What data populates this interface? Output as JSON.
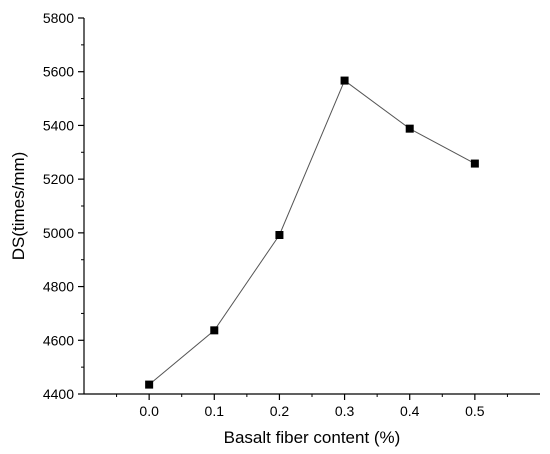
{
  "chart_data": {
    "type": "line",
    "title": "",
    "xlabel": "Basalt fiber content (%)",
    "ylabel": "DS(times/mm)",
    "x": [
      0.0,
      0.1,
      0.2,
      0.3,
      0.4,
      0.5
    ],
    "series": [
      {
        "values": [
          4435,
          4637,
          4992,
          5567,
          5388,
          5258
        ]
      }
    ],
    "xlim": [
      -0.1,
      0.6
    ],
    "ylim": [
      4400,
      5800
    ],
    "xticks": [
      0.0,
      0.1,
      0.2,
      0.3,
      0.4,
      0.5
    ],
    "xtick_labels": [
      "0.0",
      "0.1",
      "0.2",
      "0.3",
      "0.4",
      "0.5"
    ],
    "yticks": [
      4400,
      4600,
      4800,
      5000,
      5200,
      5400,
      5600,
      5800
    ],
    "ytick_labels": [
      "4400",
      "4600",
      "4800",
      "5000",
      "5200",
      "5400",
      "5600",
      "5800"
    ],
    "grid": false,
    "legend": "none",
    "marker": "square",
    "colors": {
      "marker": "#000000",
      "line": "#555555",
      "axis": "#000000"
    }
  }
}
